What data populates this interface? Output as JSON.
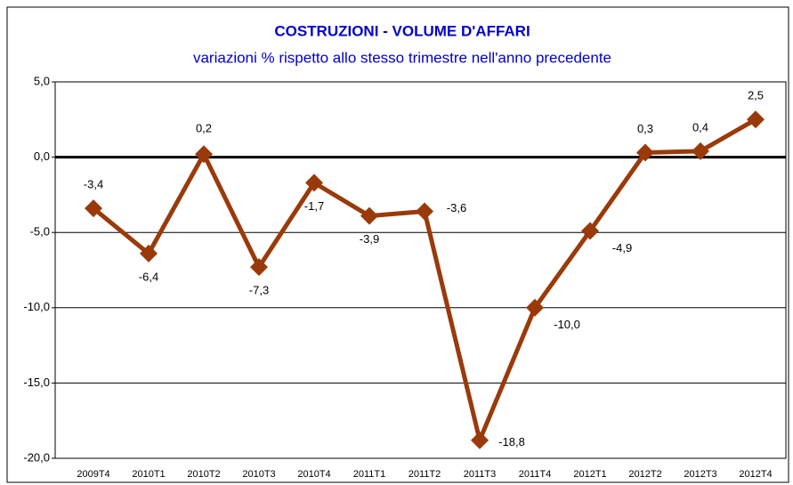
{
  "chart_data": {
    "type": "line",
    "title": "COSTRUZIONI - VOLUME D'AFFARI",
    "subtitle": "variazioni % rispetto allo stesso trimestre nell'anno precedente",
    "categories": [
      "2009T4",
      "2010T1",
      "2010T2",
      "2010T3",
      "2010T4",
      "2011T1",
      "2011T2",
      "2011T3",
      "2011T4",
      "2012T1",
      "2012T2",
      "2012T3",
      "2012T4"
    ],
    "series": [
      {
        "name": "Volume d'affari",
        "color": "#9a3a0a",
        "values": [
          -3.4,
          -6.4,
          0.2,
          -7.3,
          -1.7,
          -3.9,
          -3.6,
          -18.8,
          -10.0,
          -4.9,
          0.3,
          0.4,
          2.5
        ],
        "value_labels": [
          "-3,4",
          "-6,4",
          "0,2",
          "-7,3",
          "-1,7",
          "-3,9",
          "-3,6",
          "-18,8",
          "-10,0",
          "-4,9",
          "0,3",
          "0,4",
          "2,5"
        ]
      }
    ],
    "ylim": [
      -20,
      5
    ],
    "yticks": [
      {
        "value": -20,
        "label": "-20,0"
      },
      {
        "value": -15,
        "label": "-15,0"
      },
      {
        "value": -10,
        "label": "-10,0"
      },
      {
        "value": -5,
        "label": "-5,0"
      },
      {
        "value": 0,
        "label": "0,0"
      },
      {
        "value": 5,
        "label": "5,0"
      }
    ],
    "grid": true
  }
}
